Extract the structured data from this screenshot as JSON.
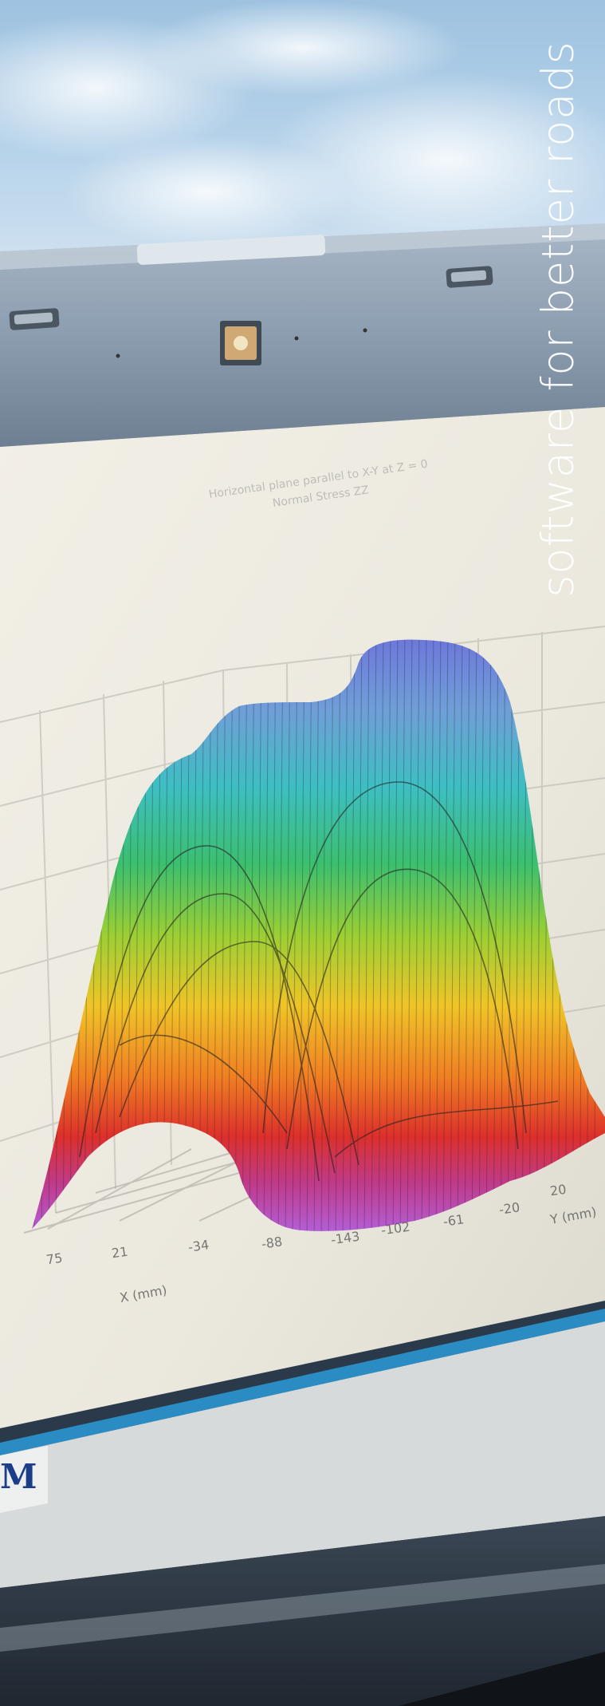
{
  "tagline": "software for better roads",
  "screen_plot": {
    "title_line_1": "Horizontal plane parallel to X-Y at Z = 0",
    "title_line_2": "Normal Stress ZZ",
    "x_ticks": [
      "75",
      "21",
      "-34",
      "-88",
      "-143",
      "-102",
      "-61",
      "-20",
      "20"
    ],
    "x_axis_label": "X (mm)",
    "y_axis_label": "Y (mm)"
  },
  "monitor_brand_fragment": "M",
  "colors": {
    "sky": "#9fc3e2",
    "bezel": "#8d9fb2",
    "screen": "#ece9df",
    "surface_top": "#6f7bd6",
    "surface_mid": "#e8c22a",
    "surface_bottom": "#b04fc8",
    "screen_trim": "#2a8cc2"
  }
}
